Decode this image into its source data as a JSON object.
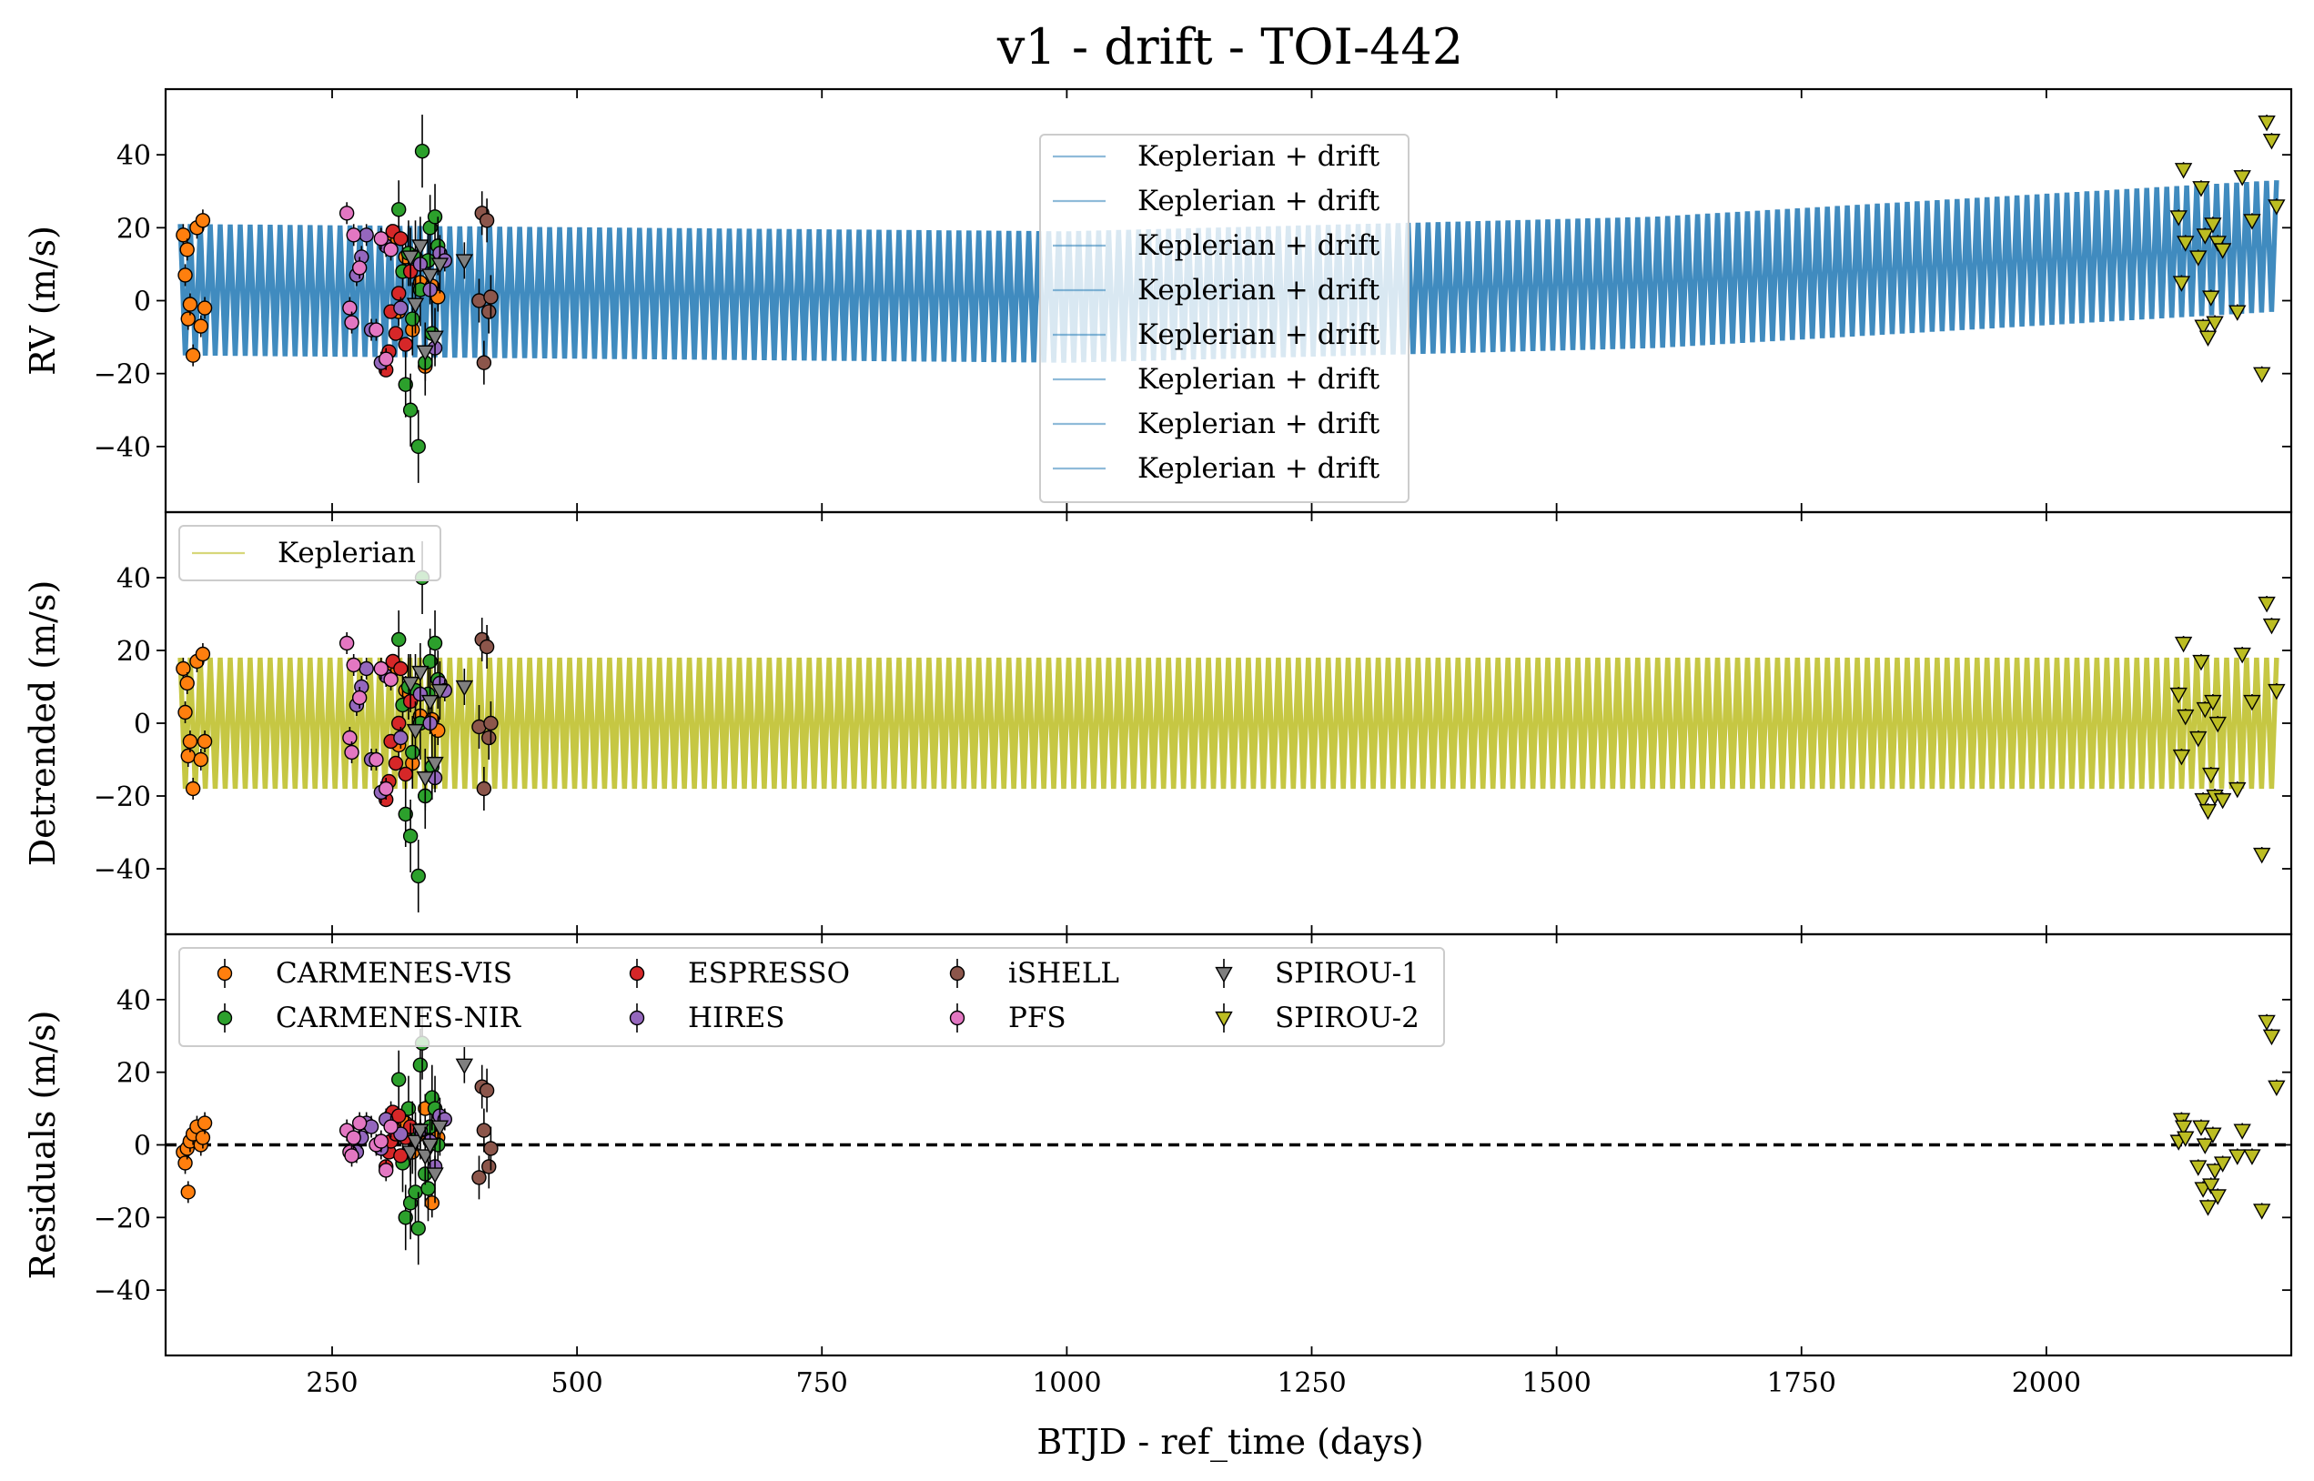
{
  "figure": {
    "title": "v1 - drift - TOI-442",
    "xlabel": "BTJD - ref_time (days)"
  },
  "chart_data": [
    {
      "type": "line",
      "panel": "rv",
      "ylabel": "RV (m/s)",
      "xlim": [
        80,
        2250
      ],
      "ylim": [
        -58,
        58
      ],
      "xticks": [
        250,
        500,
        750,
        1000,
        1250,
        1500,
        1750,
        2000
      ],
      "yticks": [
        -40,
        -20,
        0,
        20,
        40
      ],
      "legend": {
        "placement": "top-center",
        "entries": [
          "Keplerian + drift",
          "Keplerian + drift",
          "Keplerian + drift",
          "Keplerian + drift",
          "Keplerian + drift",
          "Keplerian + drift",
          "Keplerian + drift",
          "Keplerian + drift"
        ]
      },
      "model": {
        "name": "Keplerian + drift",
        "color": "#1f77b4",
        "x_range": [
          95,
          2235
        ],
        "amplitude": 18,
        "offset_at": [
          [
            95,
            3
          ],
          [
            1000,
            1
          ],
          [
            1600,
            5
          ],
          [
            2235,
            15
          ]
        ]
      },
      "series_key": "rv"
    },
    {
      "type": "line",
      "panel": "detrended",
      "ylabel": "Detrended (m/s)",
      "xlim": [
        80,
        2250
      ],
      "ylim": [
        -58,
        58
      ],
      "xticks": [
        250,
        500,
        750,
        1000,
        1250,
        1500,
        1750,
        2000
      ],
      "yticks": [
        -40,
        -20,
        0,
        20,
        40
      ],
      "legend": {
        "placement": "top-left",
        "entries": [
          "Keplerian"
        ]
      },
      "model": {
        "name": "Keplerian",
        "color": "#bcbd22",
        "x_range": [
          95,
          2235
        ],
        "amplitude": 18,
        "offset_at": [
          [
            95,
            0
          ],
          [
            2235,
            0
          ]
        ]
      },
      "series_key": "det"
    },
    {
      "type": "scatter",
      "panel": "residuals",
      "ylabel": "Residuals (m/s)",
      "xlim": [
        80,
        2250
      ],
      "ylim": [
        -58,
        58
      ],
      "xticks": [
        250,
        500,
        750,
        1000,
        1250,
        1500,
        1750,
        2000
      ],
      "yticks": [
        -40,
        -20,
        0,
        20,
        40
      ],
      "zero_line": true,
      "legend": {
        "placement": "top-left",
        "entries": [
          "CARMENES-VIS",
          "CARMENES-NIR",
          "ESPRESSO",
          "HIRES",
          "iSHELL",
          "PFS",
          "SPIROU-1",
          "SPIROU-2"
        ]
      },
      "series_key": "res"
    }
  ],
  "series": [
    {
      "name": "CARMENES-VIS",
      "marker": "circle",
      "color": "#ff7f0e",
      "x": [
        98,
        100,
        102,
        103,
        105,
        108,
        112,
        116,
        118,
        120,
        310,
        318,
        325,
        332,
        340,
        345,
        352,
        358
      ],
      "err": [
        3,
        3,
        3,
        3,
        3,
        3,
        3,
        3,
        3,
        3,
        4,
        4,
        4,
        4,
        4,
        4,
        4,
        4
      ],
      "rv": [
        18,
        7,
        14,
        -5,
        -1,
        -15,
        20,
        -7,
        22,
        -2,
        17,
        -3,
        12,
        -8,
        5,
        -18,
        4,
        1
      ],
      "det": [
        15,
        3,
        11,
        -9,
        -5,
        -18,
        17,
        -10,
        19,
        -5,
        14,
        -6,
        9,
        -11,
        2,
        -20,
        1,
        -2
      ],
      "res": [
        -2,
        -5,
        -1,
        -13,
        1,
        3,
        5,
        0,
        2,
        6,
        8,
        4,
        6,
        -2,
        3,
        10,
        -16,
        2
      ]
    },
    {
      "name": "CARMENES-NIR",
      "marker": "circle",
      "color": "#2ca02c",
      "x": [
        318,
        322,
        325,
        328,
        330,
        332,
        335,
        338,
        340,
        342,
        345,
        348,
        350,
        352,
        355,
        358
      ],
      "err": [
        8,
        8,
        9,
        9,
        10,
        10,
        10,
        10,
        10,
        10,
        9,
        9,
        9,
        9,
        9,
        8
      ],
      "rv": [
        25,
        8,
        -23,
        13,
        -30,
        -5,
        12,
        -40,
        3,
        41,
        -17,
        11,
        20,
        -9,
        23,
        15
      ],
      "det": [
        23,
        5,
        -25,
        10,
        -31,
        -8,
        9,
        -42,
        0,
        40,
        -20,
        8,
        17,
        -12,
        22,
        12
      ],
      "res": [
        18,
        -5,
        -20,
        10,
        -16,
        2,
        -13,
        -23,
        22,
        28,
        -8,
        -12,
        5,
        13,
        10,
        0
      ]
    },
    {
      "name": "ESPRESSO",
      "marker": "circle",
      "color": "#d62728",
      "x": [
        305,
        308,
        310,
        312,
        315,
        318,
        320,
        325,
        330
      ],
      "err": [
        1.5,
        1.5,
        1.5,
        1.5,
        1.5,
        1.5,
        1.5,
        1.5,
        1.5
      ],
      "rv": [
        -19,
        -14,
        -3,
        19,
        -9,
        2,
        17,
        -12,
        8
      ],
      "det": [
        -21,
        -16,
        -5,
        17,
        -11,
        0,
        15,
        -14,
        6
      ],
      "res": [
        -6,
        -2,
        1,
        9,
        3,
        8,
        -3,
        2,
        5
      ]
    },
    {
      "name": "HIRES",
      "marker": "circle",
      "color": "#9467bd",
      "x": [
        275,
        280,
        285,
        290,
        300,
        305,
        320,
        340,
        350,
        355,
        360,
        365
      ],
      "err": [
        3,
        3,
        3,
        3,
        3,
        3,
        3,
        3,
        3,
        3,
        3,
        3
      ],
      "rv": [
        7,
        12,
        18,
        -8,
        -17,
        15,
        -2,
        10,
        3,
        -13,
        13,
        11
      ],
      "det": [
        5,
        10,
        15,
        -10,
        -19,
        13,
        -4,
        8,
        0,
        -15,
        11,
        9
      ],
      "res": [
        -2,
        2,
        6,
        5,
        -1,
        7,
        3,
        4,
        1,
        -6,
        8,
        7
      ]
    },
    {
      "name": "iSHELL",
      "marker": "circle",
      "color": "#8c564b",
      "x": [
        400,
        403,
        405,
        408,
        410,
        412
      ],
      "err": [
        6,
        6,
        6,
        6,
        6,
        6
      ],
      "rv": [
        0,
        24,
        -17,
        22,
        -3,
        1
      ],
      "det": [
        -1,
        23,
        -18,
        21,
        -4,
        0
      ],
      "res": [
        -9,
        16,
        4,
        15,
        -6,
        -1
      ]
    },
    {
      "name": "PFS",
      "marker": "circle",
      "color": "#e377c2",
      "x": [
        265,
        268,
        270,
        272,
        278,
        295,
        300,
        305,
        310
      ],
      "err": [
        3,
        3,
        3,
        3,
        3,
        3,
        3,
        3,
        3
      ],
      "rv": [
        24,
        -2,
        -6,
        18,
        9,
        -8,
        17,
        -16,
        14
      ],
      "det": [
        22,
        -4,
        -8,
        16,
        7,
        -10,
        15,
        -18,
        12
      ],
      "res": [
        4,
        -2,
        -3,
        2,
        6,
        0,
        1,
        -7,
        5
      ]
    },
    {
      "name": "SPIROU-1",
      "marker": "triangle",
      "color": "#7f7f7f",
      "x": [
        330,
        335,
        340,
        345,
        350,
        355,
        360,
        385
      ],
      "err": [
        8,
        8,
        8,
        8,
        8,
        8,
        8,
        5
      ],
      "rv": [
        12,
        -1,
        15,
        -14,
        7,
        -10,
        10,
        11
      ],
      "det": [
        11,
        -2,
        14,
        -15,
        6,
        -11,
        9,
        10
      ],
      "res": [
        -2,
        1,
        4,
        -3,
        0,
        -8,
        5,
        22
      ]
    },
    {
      "name": "SPIROU-2",
      "marker": "triangle",
      "color": "#bcbd22",
      "x": [
        2135,
        2138,
        2140,
        2142,
        2155,
        2158,
        2160,
        2162,
        2165,
        2168,
        2170,
        2172,
        2175,
        2180,
        2195,
        2200,
        2210,
        2220,
        2225,
        2230,
        2235
      ],
      "err": [
        2,
        2,
        2,
        2,
        2,
        2,
        2,
        2,
        2,
        2,
        2,
        2,
        2,
        2,
        2,
        2,
        2,
        2,
        2,
        2,
        2
      ],
      "rv": [
        23,
        5,
        36,
        16,
        12,
        31,
        -7,
        18,
        -10,
        1,
        21,
        -6,
        16,
        14,
        -3,
        34,
        22,
        -20,
        49,
        44,
        26
      ],
      "det": [
        8,
        -9,
        22,
        2,
        -4,
        17,
        -21,
        4,
        -24,
        -14,
        6,
        -20,
        0,
        -21,
        -18,
        19,
        6,
        -36,
        33,
        27,
        9
      ],
      "res": [
        1,
        7,
        5,
        2,
        -6,
        5,
        -12,
        0,
        -17,
        -11,
        3,
        -7,
        -14,
        -5,
        -3,
        4,
        -3,
        -18,
        34,
        30,
        16
      ]
    }
  ]
}
